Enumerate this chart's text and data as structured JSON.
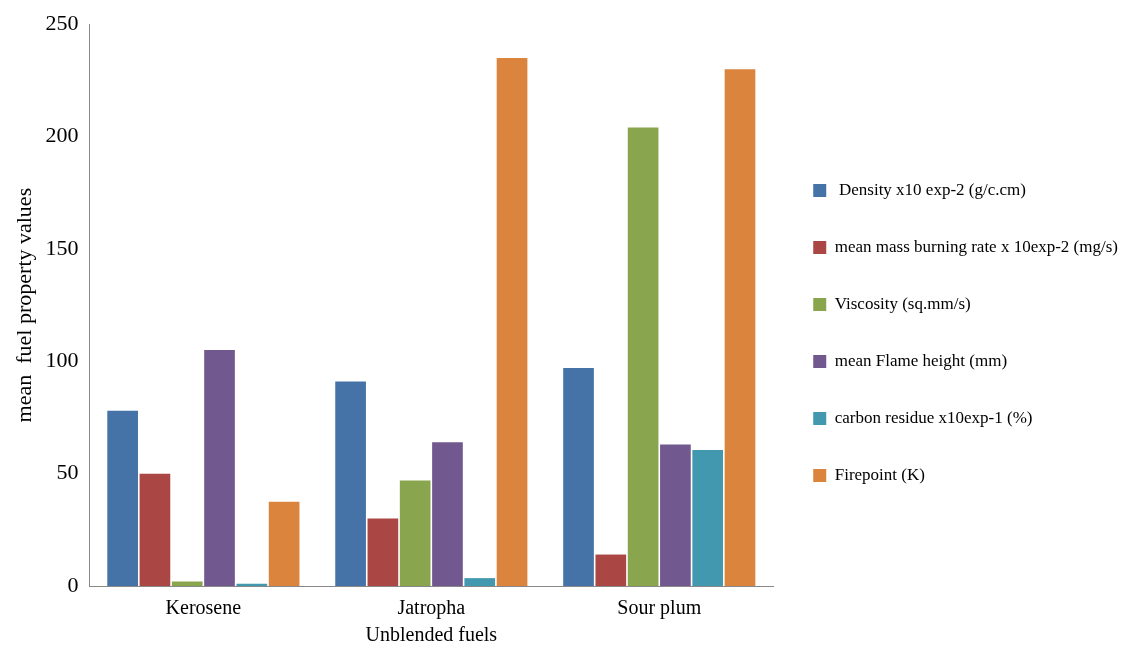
{
  "chart_data": {
    "type": "bar",
    "xlabel": "Unblended fuels",
    "ylabel": "mean  fuel property values",
    "categories": [
      "Kerosene",
      "Jatropha",
      "Sour plum"
    ],
    "series": [
      {
        "name": " Density x10 exp-2 (g/c.cm)",
        "color": "#4572a7",
        "values": [
          78,
          91,
          97
        ]
      },
      {
        "name": "mean mass burning rate x 10exp-2 (mg/s)",
        "color": "#aa4643",
        "values": [
          50,
          30,
          14
        ]
      },
      {
        "name": "Viscosity (sq.mm/s)",
        "color": "#89a54e",
        "values": [
          2,
          47,
          204
        ]
      },
      {
        "name": "mean Flame height (mm)",
        "color": "#71588f",
        "values": [
          105,
          64,
          63
        ]
      },
      {
        "name": "carbon residue x10exp-1 (%)",
        "color": "#4198af",
        "values": [
          1,
          3.5,
          60.5
        ]
      },
      {
        "name": "Firepoint (K)",
        "color": "#db843d",
        "values": [
          37.5,
          235,
          230
        ]
      }
    ],
    "ylim": [
      0,
      250
    ],
    "yticks": [
      0,
      50,
      100,
      150,
      200,
      250
    ],
    "grid": false,
    "legend": "right"
  }
}
